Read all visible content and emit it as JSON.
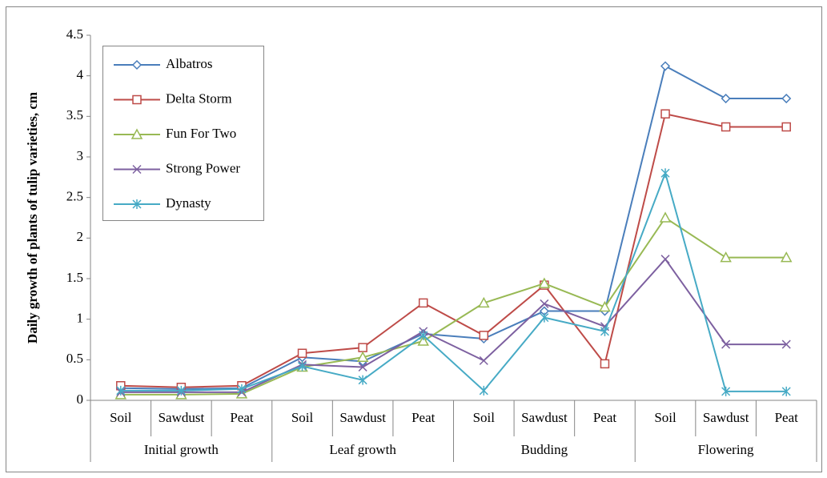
{
  "chart_data": {
    "type": "line",
    "y_label": "Daily growth of plants of tulip varieties, cm",
    "categories": [
      "Soil",
      "Sawdust",
      "Peat",
      "Soil",
      "Sawdust",
      "Peat",
      "Soil",
      "Sawdust",
      "Peat",
      "Soil",
      "Sawdust",
      "Peat"
    ],
    "groups": [
      "Initial growth",
      "Leaf growth",
      "Budding",
      "Flowering"
    ],
    "series": [
      {
        "name": "Albatros",
        "color": "#4a7ebb",
        "marker": "diamond",
        "values": [
          0.15,
          0.14,
          0.15,
          0.53,
          0.48,
          0.82,
          0.76,
          1.1,
          1.1,
          4.12,
          3.72,
          3.72
        ]
      },
      {
        "name": "Delta Storm",
        "color": "#be4b48",
        "marker": "square",
        "values": [
          0.18,
          0.16,
          0.18,
          0.58,
          0.65,
          1.2,
          0.8,
          1.42,
          0.45,
          3.53,
          3.37,
          3.37
        ]
      },
      {
        "name": "Fun For Two",
        "color": "#98b954",
        "marker": "triangle",
        "values": [
          0.07,
          0.07,
          0.08,
          0.41,
          0.53,
          0.73,
          1.2,
          1.44,
          1.15,
          2.25,
          1.76,
          1.76
        ]
      },
      {
        "name": "Strong Power",
        "color": "#7d60a0",
        "marker": "x",
        "values": [
          0.1,
          0.1,
          0.1,
          0.44,
          0.41,
          0.85,
          0.49,
          1.19,
          0.91,
          1.74,
          0.69,
          0.69
        ]
      },
      {
        "name": "Dynasty",
        "color": "#46aac5",
        "marker": "asterisk",
        "values": [
          0.12,
          0.12,
          0.14,
          0.42,
          0.25,
          0.8,
          0.12,
          1.02,
          0.85,
          2.8,
          0.11,
          0.11
        ]
      }
    ],
    "ylim": [
      0,
      4.5
    ],
    "yticks": [
      0,
      0.5,
      1,
      1.5,
      2,
      2.5,
      3,
      3.5,
      4,
      4.5
    ],
    "grid": false,
    "legend": "upper left"
  }
}
